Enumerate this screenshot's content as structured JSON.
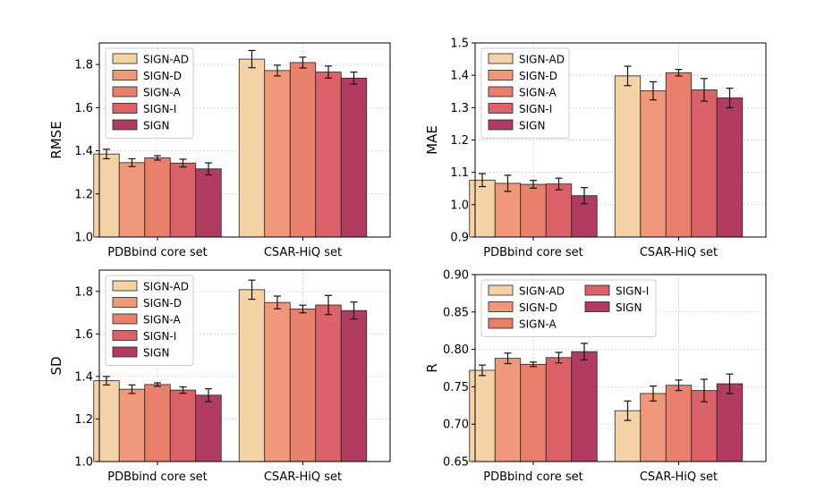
{
  "chart_data": [
    {
      "type": "bar",
      "ylabel": "RMSE",
      "ylim": [
        1.0,
        1.9
      ],
      "yticks": [
        "1.0",
        "1.2",
        "1.4",
        "1.6",
        "1.8"
      ],
      "categories": [
        "PDBbind core set",
        "CSAR-HiQ set"
      ],
      "legend": {
        "placement": "upper-left",
        "columns": 1
      },
      "series": [
        {
          "name": "SIGN-AD",
          "color": "#f6d3a6",
          "values": [
            1.385,
            1.825
          ],
          "errors": [
            0.022,
            0.04
          ]
        },
        {
          "name": "SIGN-D",
          "color": "#f0997a",
          "values": [
            1.345,
            1.772
          ],
          "errors": [
            0.018,
            0.025
          ]
        },
        {
          "name": "SIGN-A",
          "color": "#e8806b",
          "values": [
            1.367,
            1.809
          ],
          "errors": [
            0.01,
            0.025
          ]
        },
        {
          "name": "SIGN-I",
          "color": "#db6268",
          "values": [
            1.343,
            1.765
          ],
          "errors": [
            0.018,
            0.028
          ]
        },
        {
          "name": "SIGN",
          "color": "#b23c5f",
          "values": [
            1.316,
            1.737
          ],
          "errors": [
            0.028,
            0.028
          ]
        }
      ]
    },
    {
      "type": "bar",
      "ylabel": "MAE",
      "ylim": [
        0.9,
        1.5
      ],
      "yticks": [
        "0.9",
        "1.0",
        "1.1",
        "1.2",
        "1.3",
        "1.4",
        "1.5"
      ],
      "categories": [
        "PDBbind core set",
        "CSAR-HiQ set"
      ],
      "legend": {
        "placement": "upper-left",
        "columns": 1
      },
      "series": [
        {
          "name": "SIGN-AD",
          "color": "#f6d3a6",
          "values": [
            1.076,
            1.398
          ],
          "errors": [
            0.02,
            0.03
          ]
        },
        {
          "name": "SIGN-D",
          "color": "#f0997a",
          "values": [
            1.066,
            1.352
          ],
          "errors": [
            0.025,
            0.028
          ]
        },
        {
          "name": "SIGN-A",
          "color": "#e8806b",
          "values": [
            1.063,
            1.408
          ],
          "errors": [
            0.012,
            0.01
          ]
        },
        {
          "name": "SIGN-I",
          "color": "#db6268",
          "values": [
            1.064,
            1.355
          ],
          "errors": [
            0.018,
            0.035
          ]
        },
        {
          "name": "SIGN",
          "color": "#b23c5f",
          "values": [
            1.028,
            1.33
          ],
          "errors": [
            0.025,
            0.03
          ]
        }
      ]
    },
    {
      "type": "bar",
      "ylabel": "SD",
      "ylim": [
        1.0,
        1.9
      ],
      "yticks": [
        "1.0",
        "1.2",
        "1.4",
        "1.6",
        "1.8"
      ],
      "categories": [
        "PDBbind core set",
        "CSAR-HiQ set"
      ],
      "legend": {
        "placement": "upper-left",
        "columns": 1
      },
      "series": [
        {
          "name": "SIGN-AD",
          "color": "#f6d3a6",
          "values": [
            1.38,
            1.808
          ],
          "errors": [
            0.02,
            0.045
          ]
        },
        {
          "name": "SIGN-D",
          "color": "#f0997a",
          "values": [
            1.34,
            1.748
          ],
          "errors": [
            0.02,
            0.03
          ]
        },
        {
          "name": "SIGN-A",
          "color": "#e8806b",
          "values": [
            1.362,
            1.717
          ],
          "errors": [
            0.008,
            0.018
          ]
        },
        {
          "name": "SIGN-I",
          "color": "#db6268",
          "values": [
            1.336,
            1.736
          ],
          "errors": [
            0.015,
            0.045
          ]
        },
        {
          "name": "SIGN",
          "color": "#b23c5f",
          "values": [
            1.312,
            1.71
          ],
          "errors": [
            0.03,
            0.04
          ]
        }
      ]
    },
    {
      "type": "bar",
      "ylabel": "R",
      "ylim": [
        0.65,
        0.9
      ],
      "yticks": [
        "0.65",
        "0.70",
        "0.75",
        "0.80",
        "0.85",
        "0.90"
      ],
      "categories": [
        "PDBbind core set",
        "CSAR-HiQ set"
      ],
      "legend": {
        "placement": "upper-left",
        "columns": 2
      },
      "series": [
        {
          "name": "SIGN-AD",
          "color": "#f6d3a6",
          "values": [
            0.772,
            0.718
          ],
          "errors": [
            0.007,
            0.013
          ]
        },
        {
          "name": "SIGN-D",
          "color": "#f0997a",
          "values": [
            0.788,
            0.741
          ],
          "errors": [
            0.007,
            0.01
          ]
        },
        {
          "name": "SIGN-A",
          "color": "#e8806b",
          "values": [
            0.78,
            0.752
          ],
          "errors": [
            0.003,
            0.007
          ]
        },
        {
          "name": "SIGN-I",
          "color": "#db6268",
          "values": [
            0.789,
            0.745
          ],
          "errors": [
            0.007,
            0.015
          ]
        },
        {
          "name": "SIGN",
          "color": "#b23c5f",
          "values": [
            0.797,
            0.754
          ],
          "errors": [
            0.011,
            0.013
          ]
        }
      ]
    }
  ]
}
